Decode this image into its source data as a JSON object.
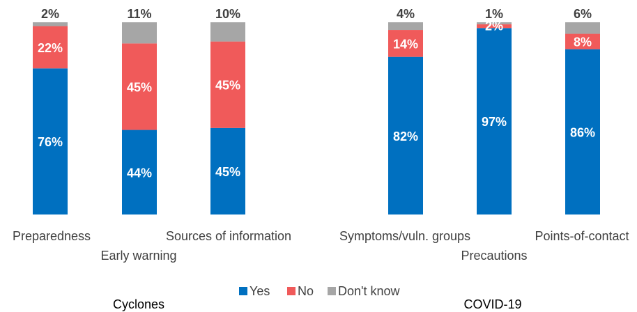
{
  "chart_data": {
    "type": "bar",
    "stacked": true,
    "percent": true,
    "categories": [
      "Preparedness",
      "Early warning",
      "Sources of information",
      "Symptoms/vuln. groups",
      "Precautions",
      "Points-of-contact"
    ],
    "groups": [
      {
        "label": "Cyclones",
        "categories": [
          0,
          1,
          2
        ]
      },
      {
        "label": "COVID-19",
        "categories": [
          3,
          4,
          5
        ]
      }
    ],
    "series": [
      {
        "name": "Yes",
        "color": "#0070C0",
        "values": [
          76,
          44,
          45,
          82,
          97,
          86
        ]
      },
      {
        "name": "No",
        "color": "#F05A5A",
        "values": [
          22,
          45,
          45,
          14,
          2,
          8
        ]
      },
      {
        "name": "Don't know",
        "color": "#A6A6A6",
        "values": [
          2,
          11,
          10,
          4,
          1,
          6
        ]
      }
    ],
    "data_labels": {
      "Yes": [
        "76%",
        "44%",
        "45%",
        "82%",
        "97%",
        "86%"
      ],
      "No": [
        "22%",
        "45%",
        "45%",
        "14%",
        "2%",
        "8%"
      ],
      "Don't know": [
        "2%",
        "11%",
        "10%",
        "4%",
        "1%",
        "6%"
      ]
    },
    "ylim": [
      0,
      100
    ],
    "legend_position": "bottom-center",
    "grid": false,
    "title": "",
    "xlabel": "",
    "ylabel": ""
  }
}
